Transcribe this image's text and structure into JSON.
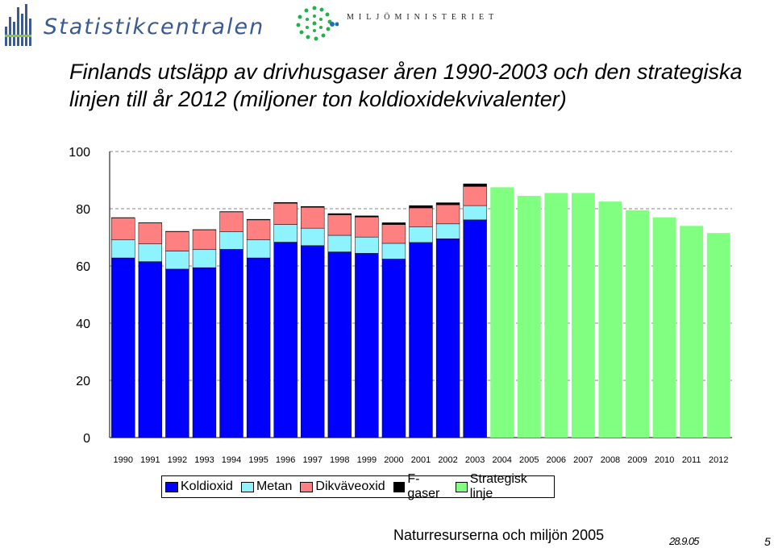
{
  "header": {
    "left_logo_text": "Statistikcentralen",
    "right_logo_text": "MILJÖMINISTERIET"
  },
  "chart_data": {
    "type": "bar",
    "stacked": true,
    "title": "Finlands utsläpp av drivhusgaser åren 1990-2003 och den strategiska linjen till år 2012 (miljoner ton koldioxidekvivalenter)",
    "xlabel": "",
    "ylabel": "",
    "ylim": [
      0,
      100
    ],
    "yticks": [
      0,
      20,
      40,
      60,
      80,
      100
    ],
    "grid": "horizontal dashed",
    "legend_position": "bottom",
    "categories": [
      "1990",
      "1991",
      "1992",
      "1993",
      "1994",
      "1995",
      "1996",
      "1997",
      "1998",
      "1999",
      "2000",
      "2001",
      "2002",
      "2003",
      "2004",
      "2005",
      "2006",
      "2007",
      "2008",
      "2009",
      "2010",
      "2011",
      "2012"
    ],
    "series": [
      {
        "name": "Koldioxid",
        "color": "#0000ff",
        "values": [
          62.8,
          61.5,
          58.9,
          59.4,
          65.8,
          62.8,
          68.3,
          67.1,
          64.9,
          64.4,
          62.4,
          68.2,
          69.5,
          76.1,
          null,
          null,
          null,
          null,
          null,
          null,
          null,
          null,
          null
        ]
      },
      {
        "name": "Metan",
        "color": "#8ff2ff",
        "values": [
          6.4,
          6.2,
          6.3,
          6.3,
          6.2,
          6.3,
          6.2,
          6.1,
          5.8,
          5.7,
          5.5,
          5.4,
          5.2,
          5.0,
          null,
          null,
          null,
          null,
          null,
          null,
          null,
          null,
          null
        ]
      },
      {
        "name": "Dikväveoxid",
        "color": "#ff8080",
        "values": [
          7.6,
          7.3,
          6.8,
          6.9,
          6.9,
          7.0,
          7.4,
          7.3,
          7.2,
          7.0,
          6.6,
          6.7,
          6.7,
          6.7,
          null,
          null,
          null,
          null,
          null,
          null,
          null,
          null,
          null
        ]
      },
      {
        "name": "F-gaser",
        "color": "#000000",
        "values": [
          0.1,
          0.1,
          0.1,
          0.1,
          0.1,
          0.2,
          0.3,
          0.3,
          0.4,
          0.4,
          0.6,
          0.8,
          0.7,
          0.9,
          null,
          null,
          null,
          null,
          null,
          null,
          null,
          null,
          null
        ]
      },
      {
        "name": "Strategisk linje",
        "color": "#80ff80",
        "values": [
          null,
          null,
          null,
          null,
          null,
          null,
          null,
          null,
          null,
          null,
          null,
          null,
          null,
          null,
          87.5,
          84.5,
          85.5,
          85.5,
          82.5,
          79.5,
          77.0,
          74.0,
          71.5
        ]
      }
    ]
  },
  "footer": {
    "source": "Naturresurserna och miljön 2005",
    "date": "28.9.05",
    "page": "5"
  }
}
